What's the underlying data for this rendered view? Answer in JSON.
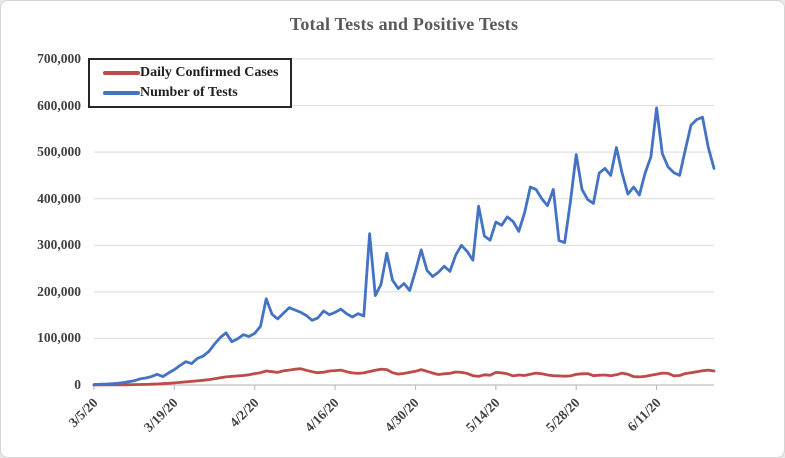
{
  "chart_data": {
    "type": "line",
    "title": "Total Tests and Positive Tests",
    "grid": "horizontal",
    "x_axis": {
      "start_label": "3/5/20",
      "tick_interval_days": 14,
      "tick_labels": [
        "3/5/20",
        "3/19/20",
        "4/2/20",
        "4/16/20",
        "4/30/20",
        "5/14/20",
        "5/28/20",
        "6/11/20"
      ],
      "tick_indices": [
        0,
        14,
        28,
        42,
        56,
        70,
        84,
        98
      ],
      "n_points": 109
    },
    "y_axis": {
      "min": 0,
      "max": 700000,
      "step": 100000,
      "tick_labels": [
        "0",
        "100,000",
        "200,000",
        "300,000",
        "400,000",
        "500,000",
        "600,000",
        "700,000"
      ]
    },
    "legend": {
      "position": "top-left-inside",
      "entries": [
        "Daily Confirmed Cases",
        "Number of Tests"
      ]
    },
    "series": [
      {
        "name": "Daily Confirmed Cases",
        "color": "#BE4B48",
        "values": [
          100,
          150,
          200,
          250,
          350,
          450,
          600,
          800,
          1000,
          1300,
          1700,
          2200,
          2800,
          3600,
          4600,
          5600,
          6700,
          7800,
          8900,
          10000,
          11500,
          13500,
          15500,
          17500,
          18500,
          19500,
          20500,
          22000,
          24500,
          26500,
          30000,
          28500,
          27000,
          30500,
          32000,
          34000,
          35000,
          31500,
          28500,
          26500,
          27500,
          30000,
          31000,
          32000,
          28500,
          26000,
          25000,
          26000,
          29000,
          31500,
          34000,
          33000,
          26500,
          23500,
          25000,
          27000,
          29500,
          33000,
          29500,
          25500,
          22500,
          24000,
          25000,
          28000,
          27000,
          25000,
          20000,
          18500,
          22000,
          21000,
          27000,
          26000,
          24000,
          19500,
          21500,
          20500,
          23000,
          25500,
          24000,
          21500,
          20000,
          19500,
          19000,
          19500,
          23000,
          24000,
          24500,
          20000,
          21000,
          21500,
          20000,
          22000,
          25500,
          23000,
          18000,
          17500,
          18500,
          21000,
          23000,
          25500,
          25000,
          19500,
          20500,
          24500,
          26500,
          28500,
          30500,
          32000,
          30000
        ]
      },
      {
        "name": "Number of Tests",
        "color": "#4472C4",
        "values": [
          1000,
          1500,
          2000,
          2500,
          3500,
          5000,
          7000,
          9000,
          13000,
          15000,
          18000,
          23000,
          18000,
          26000,
          33000,
          42000,
          50000,
          46000,
          57000,
          62000,
          72000,
          88000,
          102000,
          112000,
          93000,
          99000,
          108000,
          104000,
          111000,
          126000,
          185000,
          152000,
          142000,
          154000,
          166000,
          161000,
          156000,
          149000,
          139000,
          144000,
          159000,
          151000,
          156000,
          163000,
          153000,
          146000,
          153000,
          148000,
          325000,
          192000,
          216000,
          283000,
          225000,
          207000,
          218000,
          203000,
          245000,
          290000,
          246000,
          233000,
          242000,
          255000,
          244000,
          279000,
          300000,
          287000,
          268000,
          384000,
          320000,
          311000,
          350000,
          343000,
          361000,
          351000,
          330000,
          370000,
          425000,
          420000,
          400000,
          385000,
          420000,
          310000,
          306000,
          395000,
          495000,
          420000,
          398000,
          390000,
          455000,
          465000,
          450000,
          510000,
          455000,
          410000,
          425000,
          408000,
          455000,
          490000,
          595000,
          497000,
          468000,
          456000,
          450000,
          505000,
          558000,
          570000,
          575000,
          510000,
          465000
        ]
      }
    ],
    "style_colors": {
      "title_text": "#595959",
      "axis_text": "#404040",
      "gridline": "#D9D9D9",
      "axis_line": "#BFBFBF",
      "legend_border": "#262626"
    }
  }
}
